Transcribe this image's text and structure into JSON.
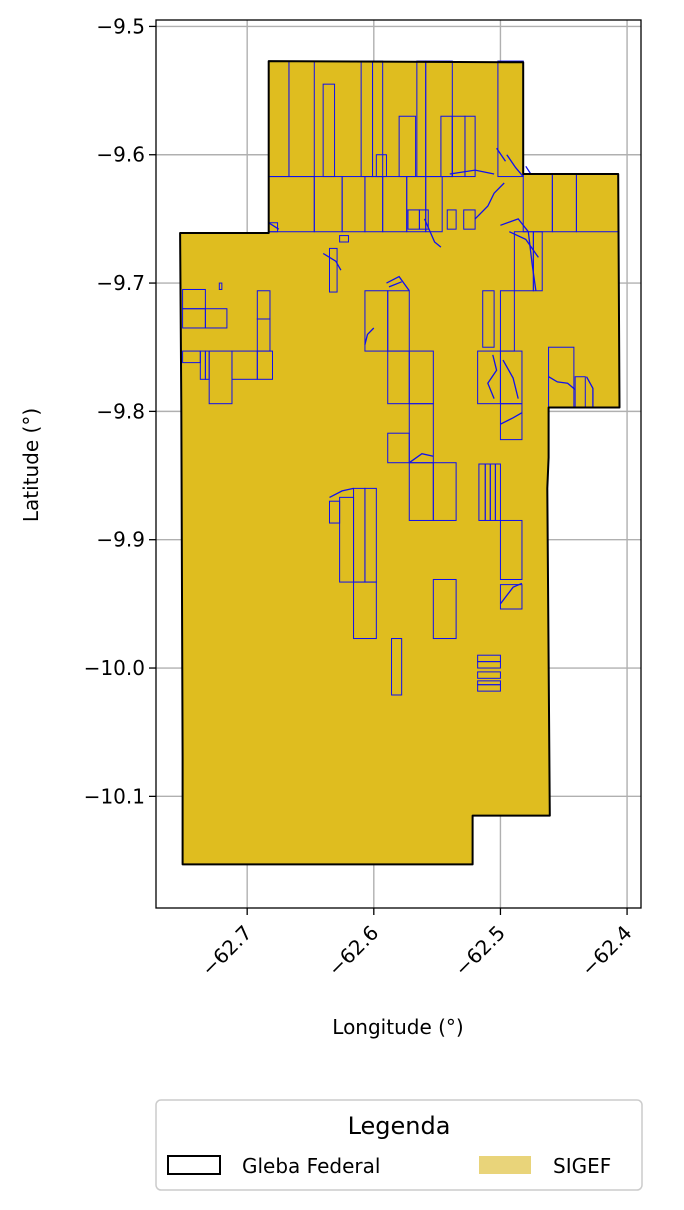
{
  "chart_data": {
    "type": "map",
    "xlabel": "Longitude (°)",
    "ylabel": "Latitude (°)",
    "xlim": [
      -62.772,
      -62.389
    ],
    "ylim": [
      -10.187,
      -9.495
    ],
    "grid": true,
    "x_ticks": [
      {
        "value": -62.7,
        "label": "−62.7"
      },
      {
        "value": -62.6,
        "label": "−62.6"
      },
      {
        "value": -62.5,
        "label": "−62.5"
      },
      {
        "value": -62.4,
        "label": "−62.4"
      }
    ],
    "y_ticks": [
      {
        "value": -9.5,
        "label": "−9.5"
      },
      {
        "value": -9.6,
        "label": "−9.6"
      },
      {
        "value": -9.7,
        "label": "−9.7"
      },
      {
        "value": -9.8,
        "label": "−9.8"
      },
      {
        "value": -9.9,
        "label": "−9.9"
      },
      {
        "value": -10.0,
        "label": "−10.0"
      },
      {
        "value": -10.1,
        "label": "−10.1"
      }
    ],
    "colors": {
      "gleba_edge": "#000000",
      "sigef_fill": "#dfbd1f",
      "sigef_edge": "#1010ee",
      "legend_sigef_patch": "#e9d47a",
      "grid": "#b0b0b0"
    },
    "gleba_federal": [
      [
        -62.683,
        -9.527
      ],
      [
        -62.482,
        -9.528
      ],
      [
        -62.482,
        -9.615
      ],
      [
        -62.407,
        -9.615
      ],
      [
        -62.406,
        -9.797
      ],
      [
        -62.462,
        -9.797
      ],
      [
        -62.462,
        -9.836
      ],
      [
        -62.463,
        -9.86
      ],
      [
        -62.461,
        -10.115
      ],
      [
        -62.522,
        -10.115
      ],
      [
        -62.522,
        -10.153
      ],
      [
        -62.751,
        -10.153
      ],
      [
        -62.751,
        -10.07
      ],
      [
        -62.752,
        -9.795
      ],
      [
        -62.753,
        -9.661
      ],
      [
        -62.683,
        -9.661
      ]
    ],
    "sigef_rects": [
      [
        -62.683,
        -9.527,
        -62.667,
        -9.617
      ],
      [
        -62.667,
        -9.527,
        -62.647,
        -9.617
      ],
      [
        -62.61,
        -9.527,
        -62.601,
        -9.617
      ],
      [
        -62.601,
        -9.527,
        -62.593,
        -9.617
      ],
      [
        -62.566,
        -9.527,
        -62.559,
        -9.617
      ],
      [
        -62.559,
        -9.527,
        -62.538,
        -9.617
      ],
      [
        -62.502,
        -9.527,
        -62.482,
        -9.617
      ],
      [
        -62.64,
        -9.545,
        -62.631,
        -9.617
      ],
      [
        -62.683,
        -9.617,
        -62.647,
        -9.66
      ],
      [
        -62.647,
        -9.617,
        -62.625,
        -9.66
      ],
      [
        -62.625,
        -9.617,
        -62.607,
        -9.66
      ],
      [
        -62.607,
        -9.617,
        -62.593,
        -9.66
      ],
      [
        -62.593,
        -9.617,
        -62.574,
        -9.66
      ],
      [
        -62.574,
        -9.617,
        -62.559,
        -9.66
      ],
      [
        -62.559,
        -9.617,
        -62.546,
        -9.66
      ],
      [
        -62.482,
        -9.615,
        -62.459,
        -9.66
      ],
      [
        -62.459,
        -9.615,
        -62.44,
        -9.66
      ],
      [
        -62.44,
        -9.615,
        -62.407,
        -9.66
      ],
      [
        -62.598,
        -9.6,
        -62.59,
        -9.617
      ],
      [
        -62.58,
        -9.57,
        -62.567,
        -9.617
      ],
      [
        -62.547,
        -9.57,
        -62.538,
        -9.617
      ],
      [
        -62.538,
        -9.57,
        -62.528,
        -9.617
      ],
      [
        -62.528,
        -9.57,
        -62.52,
        -9.617
      ],
      [
        -62.573,
        -9.643,
        -62.564,
        -9.658
      ],
      [
        -62.564,
        -9.643,
        -62.557,
        -9.658
      ],
      [
        -62.542,
        -9.643,
        -62.535,
        -9.658
      ],
      [
        -62.529,
        -9.643,
        -62.52,
        -9.658
      ],
      [
        -62.627,
        -9.663,
        -62.62,
        -9.668
      ],
      [
        -62.635,
        -9.673,
        -62.629,
        -9.707
      ],
      [
        -62.751,
        -9.705,
        -62.733,
        -9.72
      ],
      [
        -62.751,
        -9.72,
        -62.733,
        -9.735
      ],
      [
        -62.733,
        -9.72,
        -62.716,
        -9.735
      ],
      [
        -62.751,
        -9.753,
        -62.737,
        -9.762
      ],
      [
        -62.737,
        -9.753,
        -62.733,
        -9.775
      ],
      [
        -62.733,
        -9.753,
        -62.73,
        -9.775
      ],
      [
        -62.73,
        -9.753,
        -62.712,
        -9.794
      ],
      [
        -62.712,
        -9.753,
        -62.692,
        -9.775
      ],
      [
        -62.692,
        -9.753,
        -62.68,
        -9.775
      ],
      [
        -62.692,
        -9.706,
        -62.682,
        -9.728
      ],
      [
        -62.692,
        -9.728,
        -62.682,
        -9.753
      ],
      [
        -62.607,
        -9.706,
        -62.589,
        -9.753
      ],
      [
        -62.589,
        -9.706,
        -62.572,
        -9.753
      ],
      [
        -62.589,
        -9.753,
        -62.572,
        -9.794
      ],
      [
        -62.572,
        -9.753,
        -62.553,
        -9.794
      ],
      [
        -62.589,
        -9.817,
        -62.572,
        -9.84
      ],
      [
        -62.572,
        -9.794,
        -62.553,
        -9.84
      ],
      [
        -62.572,
        -9.84,
        -62.553,
        -9.885
      ],
      [
        -62.553,
        -9.84,
        -62.535,
        -9.885
      ],
      [
        -62.514,
        -9.706,
        -62.505,
        -9.75
      ],
      [
        -62.518,
        -9.753,
        -62.5,
        -9.794
      ],
      [
        -62.5,
        -9.753,
        -62.483,
        -9.794
      ],
      [
        -62.5,
        -9.706,
        -62.489,
        -9.753
      ],
      [
        -62.489,
        -9.66,
        -62.474,
        -9.706
      ],
      [
        -62.474,
        -9.66,
        -62.467,
        -9.706
      ],
      [
        -62.462,
        -9.75,
        -62.442,
        -9.797
      ],
      [
        -62.441,
        -9.773,
        -62.433,
        -9.797
      ],
      [
        -62.5,
        -9.794,
        -62.483,
        -9.822
      ],
      [
        -62.517,
        -9.841,
        -62.512,
        -9.885
      ],
      [
        -62.512,
        -9.841,
        -62.508,
        -9.885
      ],
      [
        -62.508,
        -9.841,
        -62.504,
        -9.885
      ],
      [
        -62.504,
        -9.841,
        -62.5,
        -9.885
      ],
      [
        -62.5,
        -9.885,
        -62.483,
        -9.931
      ],
      [
        -62.5,
        -9.935,
        -62.483,
        -9.954
      ],
      [
        -62.635,
        -9.87,
        -62.627,
        -9.887
      ],
      [
        -62.627,
        -9.867,
        -62.616,
        -9.933
      ],
      [
        -62.616,
        -9.86,
        -62.607,
        -9.933
      ],
      [
        -62.607,
        -9.86,
        -62.598,
        -9.933
      ],
      [
        -62.616,
        -9.933,
        -62.598,
        -9.977
      ],
      [
        -62.586,
        -9.977,
        -62.578,
        -10.021
      ],
      [
        -62.553,
        -9.931,
        -62.535,
        -9.977
      ],
      [
        -62.518,
        -9.99,
        -62.5,
        -9.995
      ],
      [
        -62.518,
        -9.995,
        -62.5,
        -10.0
      ],
      [
        -62.518,
        -10.003,
        -62.5,
        -10.008
      ],
      [
        -62.518,
        -10.01,
        -62.5,
        -10.013
      ],
      [
        -62.518,
        -10.013,
        -62.5,
        -10.018
      ],
      [
        -62.683,
        -9.653,
        -62.676,
        -9.66
      ],
      [
        -62.722,
        -9.7,
        -62.72,
        -9.705
      ]
    ],
    "sigef_lines": [
      [
        [
          -62.64,
          -9.677
        ],
        [
          -62.63,
          -9.683
        ],
        [
          -62.626,
          -9.69
        ]
      ],
      [
        [
          -62.6,
          -9.735
        ],
        [
          -62.605,
          -9.74
        ],
        [
          -62.607,
          -9.748
        ]
      ],
      [
        [
          -62.59,
          -9.7
        ],
        [
          -62.58,
          -9.695
        ],
        [
          -62.572,
          -9.706
        ]
      ],
      [
        [
          -62.588,
          -9.703
        ],
        [
          -62.578,
          -9.699
        ]
      ],
      [
        [
          -62.56,
          -9.65
        ],
        [
          -62.552,
          -9.668
        ],
        [
          -62.547,
          -9.672
        ]
      ],
      [
        [
          -62.54,
          -9.615
        ],
        [
          -62.52,
          -9.612
        ],
        [
          -62.505,
          -9.615
        ]
      ],
      [
        [
          -62.52,
          -9.65
        ],
        [
          -62.51,
          -9.64
        ],
        [
          -62.505,
          -9.63
        ],
        [
          -62.497,
          -9.622
        ]
      ],
      [
        [
          -62.5,
          -9.655
        ],
        [
          -62.486,
          -9.65
        ],
        [
          -62.478,
          -9.66
        ]
      ],
      [
        [
          -62.493,
          -9.66
        ],
        [
          -62.48,
          -9.666
        ],
        [
          -62.47,
          -9.68
        ]
      ],
      [
        [
          -62.478,
          -9.66
        ],
        [
          -62.475,
          -9.685
        ],
        [
          -62.472,
          -9.706
        ]
      ],
      [
        [
          -62.495,
          -9.6
        ],
        [
          -62.488,
          -9.61
        ],
        [
          -62.482,
          -9.617
        ]
      ],
      [
        [
          -62.503,
          -9.595
        ],
        [
          -62.496,
          -9.605
        ]
      ],
      [
        [
          -62.48,
          -9.609
        ],
        [
          -62.476,
          -9.615
        ]
      ],
      [
        [
          -62.506,
          -9.756
        ],
        [
          -62.503,
          -9.768
        ],
        [
          -62.51,
          -9.778
        ],
        [
          -62.505,
          -9.79
        ]
      ],
      [
        [
          -62.498,
          -9.76
        ],
        [
          -62.49,
          -9.774
        ],
        [
          -62.486,
          -9.79
        ]
      ],
      [
        [
          -62.462,
          -9.773
        ],
        [
          -62.455,
          -9.777
        ],
        [
          -62.447,
          -9.778
        ],
        [
          -62.441,
          -9.783
        ]
      ],
      [
        [
          -62.432,
          -9.773
        ],
        [
          -62.427,
          -9.782
        ],
        [
          -62.427,
          -9.797
        ]
      ],
      [
        [
          -62.572,
          -9.84
        ],
        [
          -62.562,
          -9.833
        ],
        [
          -62.553,
          -9.835
        ]
      ],
      [
        [
          -62.5,
          -9.81
        ],
        [
          -62.49,
          -9.805
        ],
        [
          -62.483,
          -9.801
        ]
      ],
      [
        [
          -62.5,
          -9.95
        ],
        [
          -62.49,
          -9.937
        ],
        [
          -62.483,
          -9.934
        ]
      ],
      [
        [
          -62.635,
          -9.867
        ],
        [
          -62.625,
          -9.862
        ],
        [
          -62.616,
          -9.86
        ]
      ],
      [
        [
          -62.683,
          -9.653
        ],
        [
          -62.675,
          -9.658
        ]
      ]
    ]
  },
  "legend": {
    "title": "Legenda",
    "items": [
      {
        "label": "Gleba Federal",
        "kind": "outline"
      },
      {
        "label": "SIGEF",
        "kind": "fill"
      }
    ]
  }
}
